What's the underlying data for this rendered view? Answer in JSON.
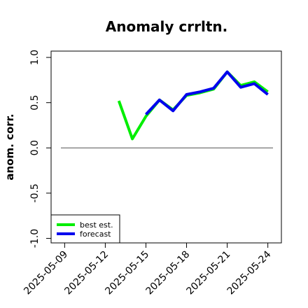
{
  "chart_data": {
    "type": "line",
    "title": "Anomaly crrltn.",
    "xlabel": "",
    "ylabel": "anom. corr.",
    "x": [
      "2025-05-13",
      "2025-05-14",
      "2025-05-15",
      "2025-05-16",
      "2025-05-17",
      "2025-05-18",
      "2025-05-19",
      "2025-05-20",
      "2025-05-21",
      "2025-05-22",
      "2025-05-23",
      "2025-05-24"
    ],
    "xticks": [
      "2025-05-09",
      "2025-05-12",
      "2025-05-15",
      "2025-05-18",
      "2025-05-21",
      "2025-05-24"
    ],
    "highlight_tick": "2025-05-15",
    "xlim": [
      "2025-05-08",
      "2025-05-25"
    ],
    "ylim": [
      -1.05,
      1.07
    ],
    "yticks": [
      "-1.0",
      "-0.5",
      "0.0",
      "0.5",
      "1.0"
    ],
    "reference_line": 0.0,
    "series": [
      {
        "name": "best est.",
        "color": "#00ee00",
        "values": [
          0.52,
          0.1,
          0.35,
          0.53,
          0.42,
          0.58,
          0.61,
          0.65,
          0.84,
          0.69,
          0.73,
          0.62
        ]
      },
      {
        "name": "forecast",
        "color": "#0000ee",
        "values": [
          null,
          null,
          0.37,
          0.53,
          0.41,
          0.59,
          0.62,
          0.66,
          0.84,
          0.67,
          0.71,
          0.59
        ]
      }
    ],
    "legend_position": "bottom-left",
    "grid": false
  },
  "colors": {
    "highlight_tick": "#228b22",
    "reference_line": "#666666"
  }
}
